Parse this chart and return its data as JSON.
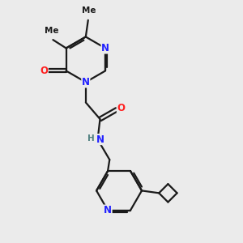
{
  "bg_color": "#ebebeb",
  "bond_color": "#1a1a1a",
  "N_color": "#2020ff",
  "O_color": "#ff2020",
  "NH_color": "#508080",
  "line_width": 1.6,
  "figsize": [
    3.0,
    3.0
  ],
  "dpi": 100,
  "xlim": [
    0,
    10
  ],
  "ylim": [
    0,
    10
  ]
}
